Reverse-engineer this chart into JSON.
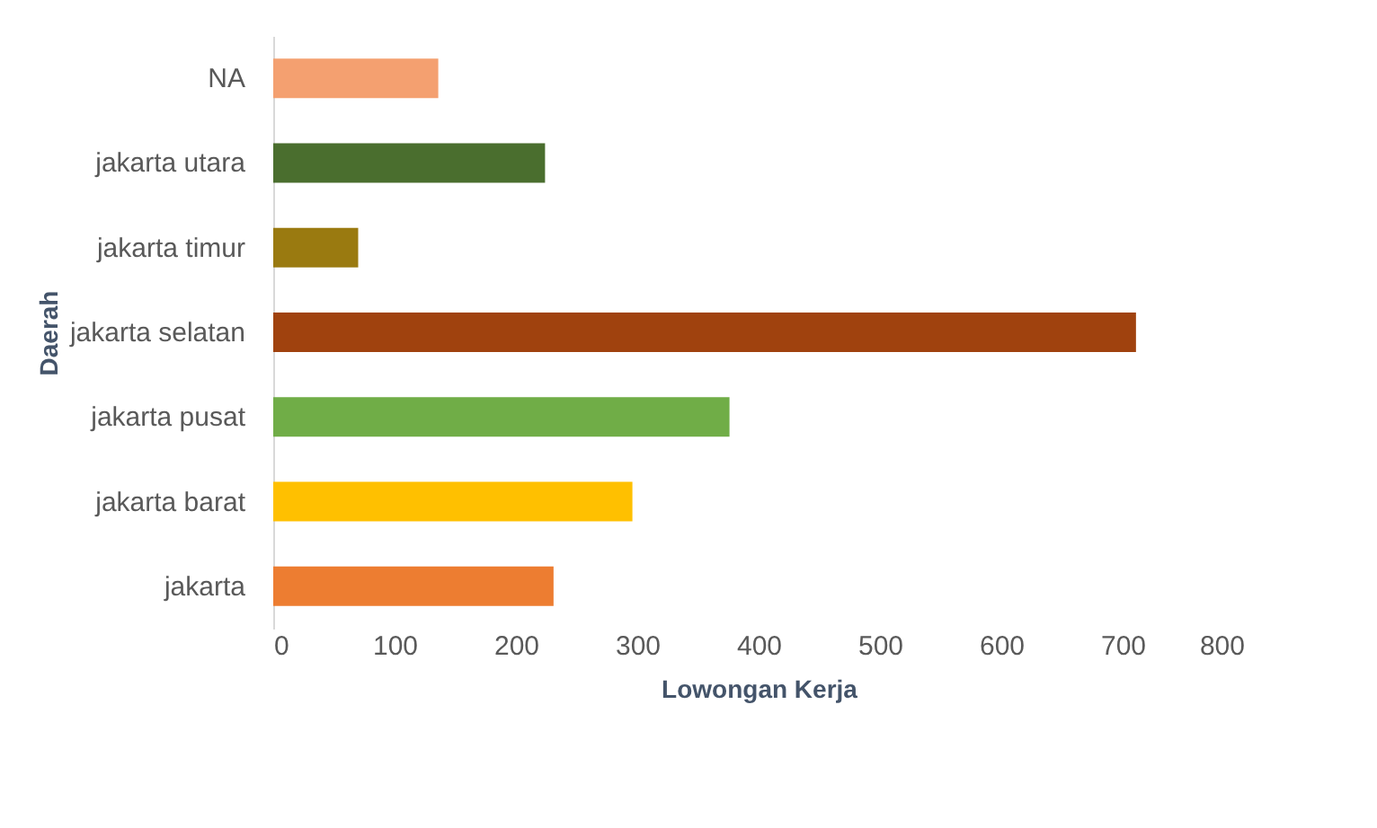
{
  "chart_data": {
    "type": "bar",
    "orientation": "horizontal",
    "xlabel": "Lowongan Kerja",
    "ylabel": "Daerah",
    "categories": [
      "NA",
      "jakarta utara",
      "jakarta timur",
      "jakarta selatan",
      "jakarta pusat",
      "jakarta barat",
      "jakarta"
    ],
    "values": [
      136,
      224,
      70,
      711,
      376,
      296,
      231
    ],
    "colors": [
      "#f4a070",
      "#4a6e2e",
      "#9a7a10",
      "#a0420e",
      "#70ad47",
      "#ffc000",
      "#ed7d31"
    ],
    "xlim": [
      0,
      800
    ],
    "xticks": [
      0,
      100,
      200,
      300,
      400,
      500,
      600,
      700,
      800
    ],
    "grid": false
  }
}
